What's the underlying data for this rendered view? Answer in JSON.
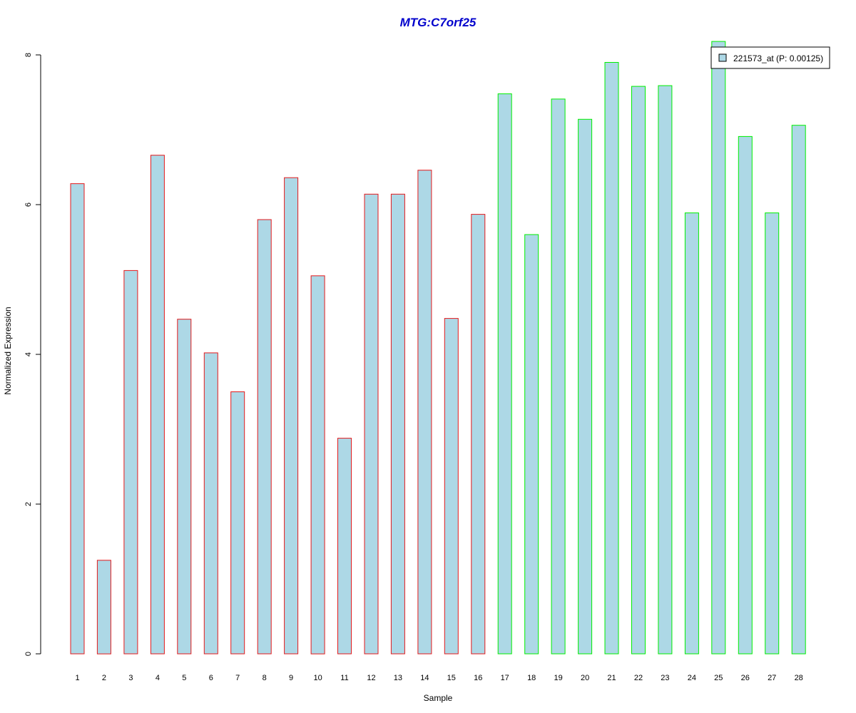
{
  "chart_data": {
    "type": "bar",
    "title": "MTG:C7orf25",
    "xlabel": "Sample",
    "ylabel": "Normalized Expression",
    "categories": [
      "1",
      "2",
      "3",
      "4",
      "5",
      "6",
      "7",
      "8",
      "9",
      "10",
      "11",
      "12",
      "13",
      "14",
      "15",
      "16",
      "17",
      "18",
      "19",
      "20",
      "21",
      "22",
      "23",
      "24",
      "25",
      "26",
      "27",
      "28"
    ],
    "series": [
      {
        "name": "221573_at (P: 0.00125)",
        "values": [
          6.28,
          1.25,
          5.12,
          6.66,
          4.47,
          4.02,
          3.5,
          5.8,
          6.36,
          5.05,
          2.88,
          6.14,
          6.14,
          6.46,
          4.48,
          5.87,
          7.48,
          5.6,
          7.41,
          7.14,
          7.9,
          7.58,
          7.59,
          5.89,
          8.18,
          6.91,
          5.89,
          7.06
        ]
      }
    ],
    "groups": [
      {
        "samples": [
          "1",
          "2",
          "3",
          "4",
          "5",
          "6",
          "7",
          "8",
          "9",
          "10",
          "11",
          "12",
          "13",
          "14",
          "15",
          "16"
        ],
        "border_color": "#e31a1c"
      },
      {
        "samples": [
          "17",
          "18",
          "19",
          "20",
          "21",
          "22",
          "23",
          "24",
          "25",
          "26",
          "27",
          "28"
        ],
        "border_color": "#00ee00"
      }
    ],
    "ylim": [
      0,
      8
    ],
    "yticks": [
      0,
      2,
      4,
      6,
      8
    ],
    "bar_fill": "#add8e6",
    "title_color": "#0000cc",
    "legend_position": "top-right",
    "grid": false
  }
}
